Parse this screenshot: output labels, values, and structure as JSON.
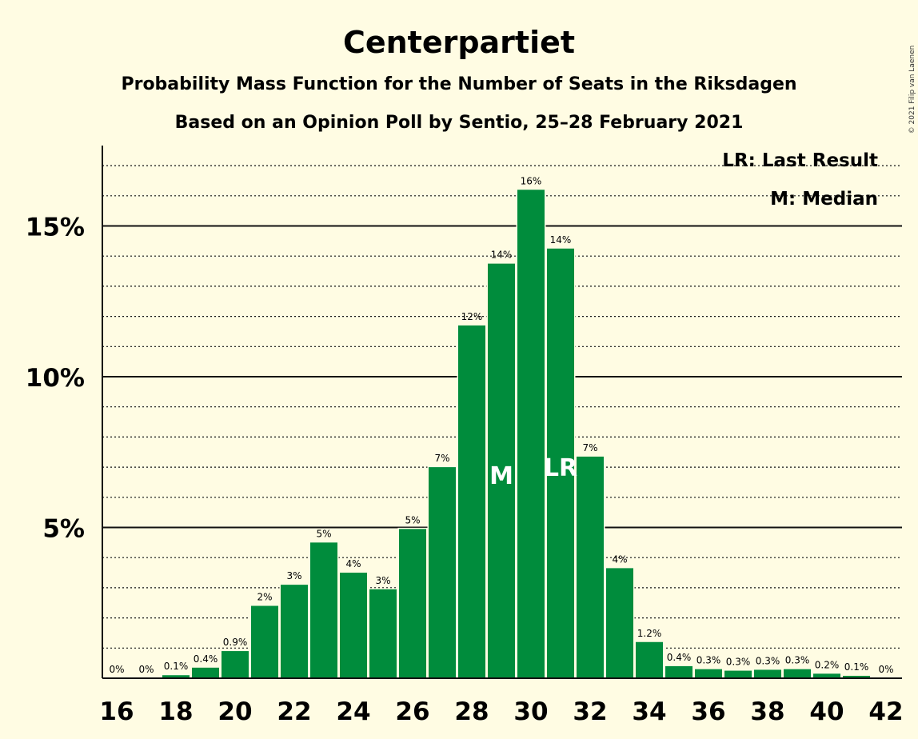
{
  "title": "Centerpartiet",
  "subtitle1": "Probability Mass Function for the Number of Seats in the Riksdagen",
  "subtitle2": "Based on an Opinion Poll by Sentio, 25–28 February 2021",
  "copyright": "© 2021 Filip van Laenen",
  "legend": {
    "last_result": "LR: Last Result",
    "median": "M: Median"
  },
  "colors": {
    "bar": "#008C3C",
    "background": "#FFFCE3",
    "text": "#111111"
  },
  "chart_data": {
    "type": "bar",
    "x": [
      16,
      17,
      18,
      19,
      20,
      21,
      22,
      23,
      24,
      25,
      26,
      27,
      28,
      29,
      30,
      31,
      32,
      33,
      34,
      35,
      36,
      37,
      38,
      39,
      40,
      41,
      42
    ],
    "values": [
      0,
      0,
      0.1,
      0.35,
      0.9,
      2.4,
      3.1,
      4.5,
      3.5,
      2.95,
      4.95,
      7.0,
      11.7,
      13.75,
      16.2,
      14.25,
      7.35,
      3.65,
      1.2,
      0.4,
      0.3,
      0.25,
      0.28,
      0.3,
      0.15,
      0.08,
      0
    ],
    "labels": [
      "0%",
      "0%",
      "0.1%",
      "0.4%",
      "0.9%",
      "2%",
      "3%",
      "5%",
      "4%",
      "3%",
      "5%",
      "7%",
      "12%",
      "14%",
      "16%",
      "14%",
      "7%",
      "4%",
      "1.2%",
      "0.4%",
      "0.3%",
      "0.3%",
      "0.3%",
      "0.3%",
      "0.2%",
      "0.1%",
      "0%"
    ],
    "xticks": [
      "16",
      "18",
      "20",
      "22",
      "24",
      "26",
      "28",
      "30",
      "32",
      "34",
      "36",
      "38",
      "40",
      "42"
    ],
    "yticks": [
      "5%",
      "10%",
      "15%"
    ],
    "ylim": [
      0,
      17.7
    ],
    "median": {
      "x": 29,
      "label": "M"
    },
    "last_result": {
      "x": 31,
      "label": "LR"
    },
    "legend_position": "top-right",
    "grid": "major solid lines at 5% steps, dotted minor lines at 1% steps"
  }
}
